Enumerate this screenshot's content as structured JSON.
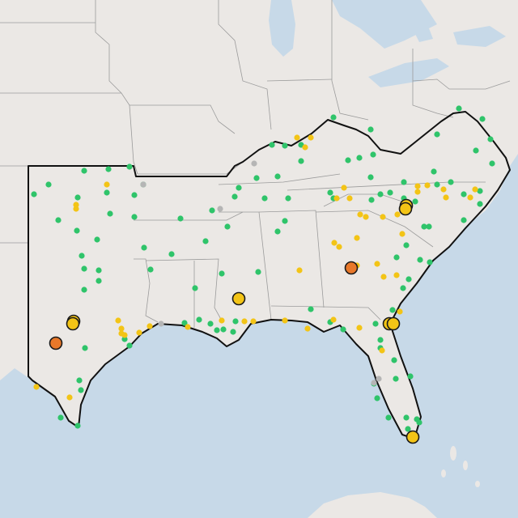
{
  "map": {
    "colors": {
      "land": "#ebe8e5",
      "water": "#c7d9e8",
      "state_border": "#9b9b9b",
      "region_outline": "#111111"
    },
    "marker_colors": {
      "green": "#2fc46a",
      "yellow": "#f3c416",
      "orange": "#e8782a",
      "gray": "#b5b5b5",
      "outline": "#1a1a1a"
    },
    "large_markers": [
      {
        "id": "tx-large-1",
        "color": "yellow"
      },
      {
        "id": "tx-large-2",
        "color": "orange"
      },
      {
        "id": "la-large",
        "color": "yellow"
      },
      {
        "id": "ga-large",
        "color": "orange"
      },
      {
        "id": "nc-large",
        "color": "yellow"
      },
      {
        "id": "jax-large",
        "color": "yellow"
      },
      {
        "id": "miami-large",
        "color": "yellow"
      }
    ]
  }
}
